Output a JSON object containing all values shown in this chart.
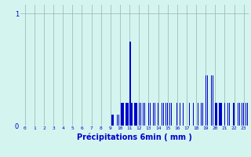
{
  "xlabel": "Précipitations 6min ( mm )",
  "bar_color": "#0000cc",
  "bg_color": "#d4f5ef",
  "grid_color": "#9ab0b0",
  "ylim": [
    0,
    1.08
  ],
  "xlim": [
    -0.5,
    23.5
  ],
  "ytick_vals": [
    0,
    1
  ],
  "ytick_labels": [
    "0",
    "1"
  ],
  "xticks": [
    0,
    1,
    2,
    3,
    4,
    5,
    6,
    7,
    8,
    9,
    10,
    11,
    12,
    13,
    14,
    15,
    16,
    17,
    18,
    19,
    20,
    21,
    22,
    23
  ],
  "bar_positions": [
    9.1,
    9.2,
    9.3,
    9.5,
    9.7,
    9.9,
    10.0,
    10.1,
    10.2,
    10.3,
    10.4,
    10.5,
    10.6,
    10.7,
    10.8,
    10.9,
    11.0,
    11.1,
    11.2,
    11.3,
    11.4,
    11.5,
    11.6,
    11.7,
    11.8,
    11.9,
    12.0,
    12.2,
    12.4,
    12.6,
    12.8,
    13.0,
    13.2,
    13.5,
    13.7,
    14.0,
    14.2,
    14.4,
    14.6,
    14.8,
    15.0,
    15.2,
    15.4,
    15.6,
    16.0,
    16.3,
    16.6,
    17.0,
    17.3,
    17.5,
    17.7,
    18.0,
    18.2,
    18.5,
    18.7,
    19.0,
    19.2,
    19.4,
    19.6,
    19.8,
    20.0,
    20.1,
    20.2,
    20.3,
    20.4,
    20.5,
    20.6,
    20.7,
    20.8,
    21.0,
    21.3,
    21.5,
    21.7,
    21.9,
    22.0,
    22.2,
    22.4,
    22.6,
    22.8,
    23.0,
    23.2,
    23.4,
    23.6
  ],
  "bar_heights": [
    0.1,
    0.1,
    0.1,
    0.1,
    0.1,
    0.1,
    0.2,
    0.2,
    0.2,
    0.2,
    0.2,
    0.2,
    0.2,
    0.2,
    0.2,
    0.2,
    0.75,
    0.75,
    0.2,
    0.2,
    0.2,
    0.2,
    0.2,
    0.2,
    0.2,
    0.2,
    0.2,
    0.2,
    0.2,
    0.2,
    0.2,
    0.2,
    0.2,
    0.2,
    0.2,
    0.2,
    0.2,
    0.2,
    0.2,
    0.2,
    0.2,
    0.2,
    0.2,
    0.2,
    0.2,
    0.2,
    0.2,
    0.2,
    0.2,
    0.2,
    0.2,
    0.2,
    0.2,
    0.2,
    0.2,
    0.45,
    0.45,
    0.45,
    0.45,
    0.45,
    0.2,
    0.2,
    0.2,
    0.2,
    0.2,
    0.2,
    0.2,
    0.2,
    0.2,
    0.2,
    0.2,
    0.2,
    0.2,
    0.2,
    0.2,
    0.2,
    0.2,
    0.2,
    0.2,
    0.2,
    0.2,
    0.2,
    0.2
  ]
}
